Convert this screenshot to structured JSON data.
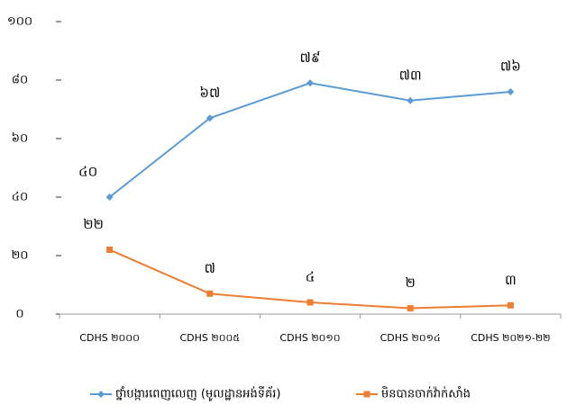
{
  "chart_data": {
    "type": "line",
    "categories": [
      "CDHS ២០០០",
      "CDHS ២០០៥",
      "CDHS ២០១០",
      "CDHS ២០១៤",
      "CDHS ២០២១-២២"
    ],
    "series": [
      {
        "name": "ថ្នាំបង្ការពេញលេញ (មូលដ្ឋានអង់ទីគ័រ)",
        "color": "#5b9bd5",
        "values": [
          40,
          67,
          79,
          73,
          76
        ],
        "value_labels": [
          "៤០",
          "៦៧",
          "៧៩",
          "៧៣",
          "៧៦"
        ]
      },
      {
        "name": "មិនបានចាក់វ៉ាក់សាំង",
        "color": "#ed7d31",
        "values": [
          22,
          7,
          4,
          2,
          3
        ],
        "value_labels": [
          "២២",
          "៧",
          "៤",
          "២",
          "៣"
        ]
      }
    ],
    "ylim": [
      0,
      100
    ],
    "yticks": [
      {
        "value": 0,
        "label": "០"
      },
      {
        "value": 20,
        "label": "២០"
      },
      {
        "value": 40,
        "label": "៤០"
      },
      {
        "value": 60,
        "label": "៦០"
      },
      {
        "value": 80,
        "label": "៨០"
      },
      {
        "value": 100,
        "label": "១០០"
      }
    ],
    "grid": false,
    "legend": "bottom"
  }
}
